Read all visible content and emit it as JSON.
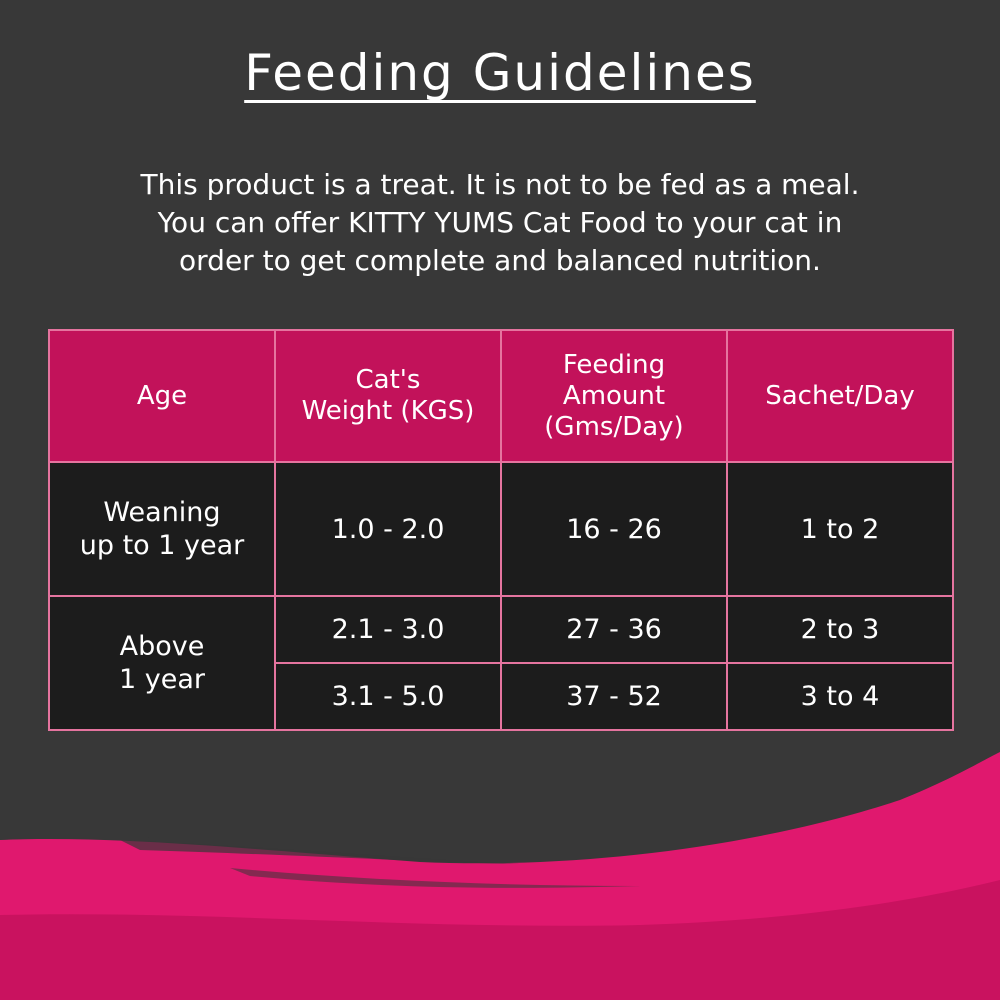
{
  "title": "Feeding Guidelines",
  "intro": [
    "This product is a treat. It is not to be fed as a meal.",
    "You can offer KITTY YUMS Cat Food to your cat in",
    "order to get complete and balanced nutrition."
  ],
  "table": {
    "headers": {
      "age": "Age",
      "weight": [
        "Cat's",
        "Weight (KGS)"
      ],
      "amount": [
        "Feeding",
        "Amount",
        "(Gms/Day)"
      ],
      "sachet": "Sachet/Day"
    },
    "groups": [
      {
        "age": [
          "Weaning",
          "up to 1 year"
        ],
        "rows": [
          {
            "weight": "1.0 - 2.0",
            "amount": "16 - 26",
            "sachet": "1 to 2"
          }
        ]
      },
      {
        "age": [
          "Above",
          "1 year"
        ],
        "rows": [
          {
            "weight": "2.1 - 3.0",
            "amount": "27 - 36",
            "sachet": "2 to 3"
          },
          {
            "weight": "3.1 - 5.0",
            "amount": "37 - 52",
            "sachet": "3 to 4"
          }
        ]
      }
    ]
  },
  "colors": {
    "background": "#383838",
    "header_fill": "#c2125a",
    "cell_fill": "#1c1c1c",
    "border": "#e5749f",
    "brush": "#e0186e"
  }
}
